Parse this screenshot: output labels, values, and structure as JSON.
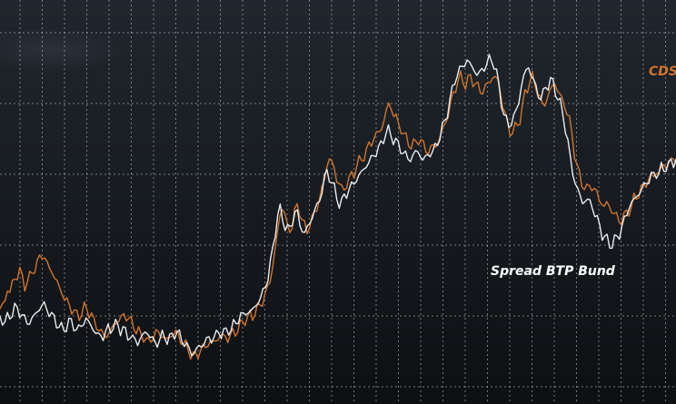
{
  "chart_data": {
    "type": "line",
    "title": "",
    "xlabel": "",
    "ylabel": "",
    "xlim": [
      0,
      325
    ],
    "ylim": [
      0,
      100
    ],
    "grid": true,
    "series": [
      {
        "name": "CDS",
        "color": "#d2742c",
        "label_text": "CDS",
        "values": [
          20,
          21,
          22,
          26,
          25,
          27,
          29,
          30,
          31,
          29,
          27,
          28,
          29,
          31,
          32,
          33,
          35,
          36,
          35,
          33,
          32,
          31,
          29,
          28,
          26,
          25,
          23,
          22,
          21,
          20,
          19,
          18,
          18,
          19,
          20,
          20,
          19,
          18,
          16,
          15,
          14,
          13,
          12,
          12,
          13,
          14,
          15,
          16,
          17,
          17,
          18,
          18,
          17,
          16,
          15,
          14,
          13,
          12,
          12,
          11,
          10,
          11,
          12,
          13,
          13,
          12,
          12,
          11,
          11,
          12,
          13,
          13,
          12,
          11,
          10,
          9,
          8,
          7,
          6,
          6,
          7,
          8,
          8,
          9,
          10,
          10,
          10,
          11,
          11,
          12,
          12,
          12,
          11,
          12,
          13,
          13,
          14,
          15,
          16,
          17,
          17,
          18,
          18,
          19,
          20,
          21,
          22,
          24,
          26,
          28,
          32,
          37,
          42,
          47,
          50,
          48,
          44,
          43,
          45,
          48,
          50,
          49,
          46,
          44,
          43,
          45,
          46,
          48,
          50,
          52,
          55,
          58,
          62,
          64,
          63,
          61,
          58,
          57,
          55,
          55,
          57,
          58,
          59,
          60,
          62,
          63,
          64,
          65,
          66,
          68,
          69,
          70,
          71,
          72,
          73,
          75,
          78,
          80,
          79,
          77,
          76,
          74,
          73,
          71,
          70,
          69,
          68,
          68,
          69,
          70,
          69,
          68,
          67,
          66,
          67,
          68,
          68,
          69,
          71,
          73,
          75,
          77,
          80,
          83,
          85,
          87,
          88,
          87,
          86,
          87,
          88,
          87,
          86,
          85,
          84,
          84,
          85,
          86,
          87,
          88,
          88,
          87,
          84,
          80,
          77,
          74,
          72,
          72,
          73,
          74,
          76,
          79,
          83,
          85,
          87,
          88,
          86,
          84,
          82,
          80,
          80,
          82,
          84,
          85,
          86,
          85,
          83,
          81,
          80,
          78,
          75,
          71,
          66,
          62,
          59,
          57,
          56,
          55,
          56,
          56,
          55,
          54,
          52,
          51,
          50,
          51,
          50,
          49,
          48,
          47,
          46,
          46,
          47,
          48,
          49,
          50,
          52,
          53,
          54,
          55,
          56,
          57,
          58,
          59,
          59,
          60,
          60,
          61,
          62,
          62,
          63,
          63,
          64,
          64
        ],
        "values_note": "estimated"
      },
      {
        "name": "Spread BTP Bund",
        "color": "#e9ecef",
        "label_text": "Spread BTP Bund",
        "values": [
          17,
          17,
          16,
          17,
          18,
          19,
          20,
          20,
          19,
          18,
          17,
          16,
          16,
          17,
          18,
          19,
          20,
          21,
          21,
          20,
          19,
          18,
          17,
          16,
          15,
          14,
          14,
          15,
          16,
          16,
          15,
          14,
          14,
          15,
          16,
          17,
          16,
          15,
          14,
          13,
          12,
          12,
          12,
          13,
          14,
          14,
          15,
          15,
          15,
          14,
          14,
          13,
          12,
          12,
          11,
          11,
          10,
          11,
          12,
          13,
          13,
          12,
          11,
          10,
          10,
          11,
          12,
          12,
          11,
          11,
          12,
          13,
          13,
          12,
          11,
          10,
          9,
          8,
          7,
          7,
          8,
          9,
          9,
          10,
          11,
          11,
          11,
          12,
          12,
          13,
          13,
          13,
          13,
          14,
          14,
          15,
          16,
          17,
          18,
          18,
          19,
          19,
          19,
          20,
          21,
          22,
          23,
          25,
          27,
          29,
          33,
          38,
          43,
          47,
          49,
          47,
          44,
          43,
          44,
          46,
          48,
          48,
          45,
          43,
          42,
          44,
          45,
          47,
          49,
          50,
          52,
          55,
          58,
          60,
          59,
          57,
          55,
          53,
          51,
          51,
          53,
          54,
          55,
          56,
          57,
          58,
          59,
          60,
          61,
          62,
          63,
          64,
          65,
          66,
          67,
          68,
          70,
          72,
          72,
          71,
          70,
          69,
          68,
          67,
          66,
          65,
          64,
          64,
          65,
          66,
          66,
          65,
          64,
          64,
          65,
          66,
          66,
          67,
          69,
          71,
          73,
          75,
          78,
          81,
          84,
          87,
          89,
          90,
          91,
          92,
          93,
          92,
          91,
          90,
          89,
          89,
          90,
          91,
          92,
          93,
          93,
          92,
          89,
          85,
          81,
          77,
          75,
          74,
          75,
          76,
          78,
          81,
          85,
          88,
          90,
          91,
          89,
          87,
          85,
          83,
          82,
          83,
          85,
          86,
          87,
          86,
          84,
          82,
          80,
          77,
          73,
          69,
          64,
          60,
          57,
          55,
          53,
          51,
          52,
          52,
          51,
          50,
          48,
          46,
          44,
          42,
          41,
          40,
          39,
          39,
          40,
          41,
          42,
          44,
          46,
          48,
          50,
          51,
          52,
          53,
          54,
          55,
          56,
          57,
          58,
          59,
          59,
          60,
          60,
          61,
          61,
          62,
          62,
          63,
          63,
          64
        ],
        "values_note": "estimated"
      }
    ]
  }
}
